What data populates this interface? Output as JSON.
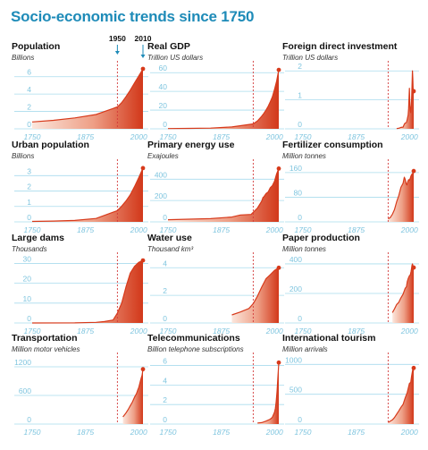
{
  "title": "Socio-economic trends since 1750",
  "colors": {
    "title": "#1e8bb8",
    "axis_tick": "#7fc5df",
    "grid": "#a9dced",
    "line": "#d73a1b",
    "fill_dark": "#d2381a",
    "fill_light": "#fbe6dc",
    "marker": "#1e8bb8",
    "text": "#111111",
    "subtext": "#333333"
  },
  "markers": [
    {
      "label": "1950",
      "year": 1950,
      "style": "dashed"
    },
    {
      "label": "2010",
      "year": 2010,
      "style": "solid"
    }
  ],
  "chart_data": [
    {
      "type": "area",
      "title": "Population",
      "unit": "Billions",
      "xlim": [
        1750,
        2010
      ],
      "ylim": [
        0,
        7
      ],
      "yticks": [
        0,
        2,
        4,
        6
      ],
      "xticks": [
        1750,
        1875,
        2000
      ],
      "x": [
        1750,
        1800,
        1850,
        1900,
        1950,
        1960,
        1970,
        1980,
        1990,
        2000,
        2010
      ],
      "y": [
        0.79,
        0.98,
        1.26,
        1.65,
        2.52,
        3.02,
        3.69,
        4.44,
        5.27,
        6.07,
        6.9
      ]
    },
    {
      "type": "area",
      "title": "Real GDP",
      "unit": "Trillion US dollars",
      "xlim": [
        1750,
        2010
      ],
      "ylim": [
        0,
        65
      ],
      "yticks": [
        0,
        20,
        40,
        60
      ],
      "xticks": [
        1750,
        1875,
        2000
      ],
      "x": [
        1750,
        1800,
        1850,
        1900,
        1950,
        1960,
        1970,
        1975,
        1980,
        1985,
        1990,
        1995,
        2000,
        2005,
        2010
      ],
      "y": [
        0.3,
        0.5,
        0.8,
        2.0,
        5.3,
        8.5,
        13.5,
        16.5,
        20,
        24,
        29,
        34,
        42,
        51,
        63
      ]
    },
    {
      "type": "area",
      "title": "Foreign direct investment",
      "unit": "Trillion US dollars",
      "xlim": [
        1750,
        2010
      ],
      "ylim": [
        0,
        2.1
      ],
      "yticks": [
        0,
        1,
        2
      ],
      "xticks": [
        1750,
        1875,
        2000
      ],
      "x": [
        1970,
        1975,
        1980,
        1985,
        1988,
        1990,
        1993,
        1995,
        1997,
        1998,
        1999,
        2000,
        2001,
        2002,
        2003,
        2004,
        2005,
        2006,
        2007,
        2008,
        2009,
        2010
      ],
      "y": [
        0.01,
        0.02,
        0.05,
        0.06,
        0.16,
        0.2,
        0.22,
        0.33,
        0.48,
        0.69,
        1.09,
        1.4,
        0.82,
        0.62,
        0.56,
        0.74,
        0.98,
        1.46,
        2.0,
        1.74,
        1.2,
        1.3
      ]
    },
    {
      "type": "area",
      "title": "Urban population",
      "unit": "Billions",
      "xlim": [
        1750,
        2010
      ],
      "ylim": [
        0,
        3.6
      ],
      "yticks": [
        0,
        1,
        2,
        3
      ],
      "xticks": [
        1750,
        1875,
        2000
      ],
      "x": [
        1750,
        1800,
        1850,
        1900,
        1950,
        1960,
        1970,
        1980,
        1990,
        2000,
        2010
      ],
      "y": [
        0.03,
        0.05,
        0.09,
        0.22,
        0.73,
        1.02,
        1.35,
        1.75,
        2.28,
        2.86,
        3.49
      ]
    },
    {
      "type": "area",
      "title": "Primary energy use",
      "unit": "Exajoules",
      "xlim": [
        1750,
        2010
      ],
      "ylim": [
        0,
        520
      ],
      "yticks": [
        0,
        200,
        400
      ],
      "xticks": [
        1750,
        1875,
        2000
      ],
      "x": [
        1750,
        1800,
        1850,
        1900,
        1920,
        1945,
        1950,
        1960,
        1970,
        1973,
        1975,
        1980,
        1985,
        1990,
        1995,
        2000,
        2005,
        2010
      ],
      "y": [
        20,
        25,
        30,
        45,
        65,
        70,
        90,
        130,
        195,
        230,
        235,
        265,
        280,
        320,
        340,
        380,
        450,
        500
      ]
    },
    {
      "type": "area",
      "title": "Fertilizer consumption",
      "unit": "Million tonnes",
      "xlim": [
        1750,
        2010
      ],
      "ylim": [
        0,
        180
      ],
      "yticks": [
        0,
        80,
        160
      ],
      "xticks": [
        1750,
        1875,
        2000
      ],
      "x": [
        1950,
        1955,
        1960,
        1965,
        1970,
        1975,
        1980,
        1985,
        1988,
        1990,
        1992,
        1994,
        1996,
        1998,
        2000,
        2002,
        2004,
        2006,
        2008,
        2010
      ],
      "y": [
        10,
        14,
        25,
        40,
        65,
        85,
        112,
        125,
        145,
        138,
        125,
        120,
        130,
        137,
        135,
        142,
        150,
        155,
        158,
        165
      ]
    },
    {
      "type": "area",
      "title": "Large dams",
      "unit": "Thousands",
      "xlim": [
        1750,
        2010
      ],
      "ylim": [
        0,
        32
      ],
      "yticks": [
        0,
        10,
        20,
        30
      ],
      "xticks": [
        1750,
        1875,
        2000
      ],
      "x": [
        1750,
        1850,
        1900,
        1920,
        1940,
        1950,
        1960,
        1970,
        1980,
        1990,
        2000,
        2010
      ],
      "y": [
        0,
        0.05,
        0.3,
        0.7,
        1.5,
        5,
        10,
        18,
        25,
        28.5,
        30.5,
        31.5
      ]
    },
    {
      "type": "area",
      "title": "Water use",
      "unit": "Thousand km³",
      "xlim": [
        1750,
        2010
      ],
      "ylim": [
        0,
        4.6
      ],
      "yticks": [
        0,
        2,
        4
      ],
      "xticks": [
        1750,
        1875,
        2000
      ],
      "x": [
        1900,
        1920,
        1940,
        1950,
        1960,
        1970,
        1980,
        1990,
        2000,
        2010
      ],
      "y": [
        0.58,
        0.8,
        1.05,
        1.4,
        1.95,
        2.6,
        3.2,
        3.5,
        3.8,
        4.0
      ]
    },
    {
      "type": "area",
      "title": "Paper production",
      "unit": "Million tonnes",
      "xlim": [
        1750,
        2010
      ],
      "ylim": [
        0,
        430
      ],
      "yticks": [
        0,
        200,
        400
      ],
      "xticks": [
        1750,
        1875,
        2000
      ],
      "x": [
        1960,
        1965,
        1970,
        1975,
        1980,
        1985,
        1990,
        1993,
        1995,
        1997,
        2000,
        2002,
        2004,
        2006,
        2007,
        2008,
        2009,
        2010
      ],
      "y": [
        70,
        95,
        125,
        140,
        170,
        195,
        235,
        245,
        280,
        300,
        320,
        325,
        350,
        390,
        400,
        390,
        360,
        375
      ]
    },
    {
      "type": "area",
      "title": "Transportation",
      "unit": "Million motor vehicles",
      "xlim": [
        1750,
        2010
      ],
      "ylim": [
        0,
        1350
      ],
      "yticks": [
        0,
        600,
        1200
      ],
      "xticks": [
        1750,
        1875,
        2000
      ],
      "x": [
        1963,
        1970,
        1975,
        1980,
        1985,
        1990,
        1995,
        1998,
        2000,
        2002,
        2004,
        2006,
        2008,
        2010
      ],
      "y": [
        150,
        230,
        300,
        380,
        460,
        560,
        640,
        720,
        760,
        830,
        900,
        970,
        1020,
        1150
      ]
    },
    {
      "type": "area",
      "title": "Telecommunications",
      "unit": "Billion telephone subscriptions",
      "xlim": [
        1750,
        2010
      ],
      "ylim": [
        0,
        6.6
      ],
      "yticks": [
        0,
        2,
        4,
        6
      ],
      "xticks": [
        1750,
        1875,
        2000
      ],
      "x": [
        1960,
        1970,
        1980,
        1990,
        1995,
        2000,
        2002,
        2004,
        2006,
        2008,
        2009,
        2010
      ],
      "y": [
        0.1,
        0.15,
        0.3,
        0.5,
        0.7,
        1.2,
        1.6,
        2.3,
        3.4,
        4.8,
        5.5,
        6.3
      ]
    },
    {
      "type": "area",
      "title": "International tourism",
      "unit": "Million arrivals",
      "xlim": [
        1750,
        2010
      ],
      "ylim": [
        0,
        1080
      ],
      "yticks": [
        0,
        500,
        1000
      ],
      "xticks": [
        1750,
        1875,
        2000
      ],
      "x": [
        1950,
        1960,
        1965,
        1970,
        1975,
        1980,
        1985,
        1990,
        1995,
        2000,
        2003,
        2005,
        2008,
        2009,
        2010
      ],
      "y": [
        25,
        70,
        110,
        165,
        220,
        280,
        330,
        440,
        530,
        680,
        700,
        800,
        920,
        880,
        940
      ]
    }
  ]
}
